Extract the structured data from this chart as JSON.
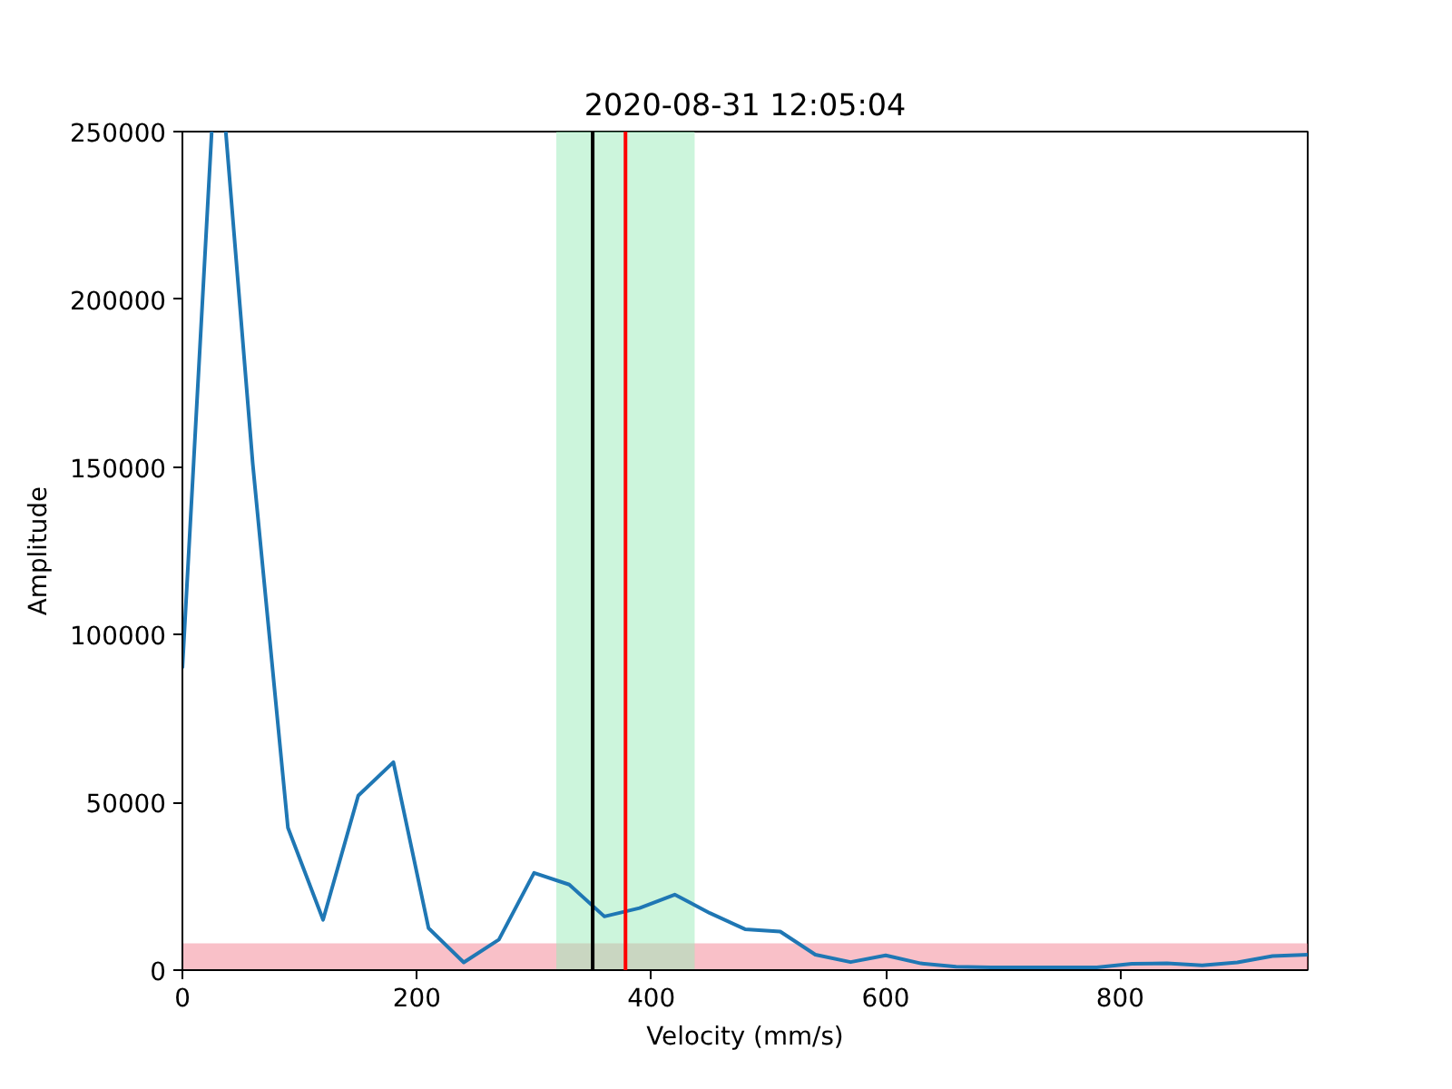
{
  "chart_data": {
    "type": "line",
    "title": "2020-08-31 12:05:04",
    "xlabel": "Velocity (mm/s)",
    "ylabel": "Amplitude",
    "series": [
      {
        "color": "#1f77b4",
        "x": [
          0,
          25,
          30,
          37,
          60,
          90,
          120,
          150,
          180,
          210,
          240,
          270,
          300,
          330,
          360,
          390,
          420,
          450,
          480,
          510,
          540,
          570,
          600,
          630,
          660,
          690,
          720,
          750,
          780,
          810,
          840,
          870,
          900,
          930,
          960
        ],
        "values": [
          90000,
          250000,
          null,
          250000,
          151000,
          42500,
          15000,
          52000,
          62000,
          12500,
          2300,
          9100,
          29000,
          25500,
          16000,
          18500,
          22500,
          17000,
          12200,
          11500,
          4600,
          2400,
          4400,
          2000,
          1000,
          800,
          800,
          800,
          800,
          1900,
          2000,
          1400,
          2300,
          4200,
          4600
        ]
      }
    ],
    "xlim": [
      0,
      960
    ],
    "ylim": [
      0,
      250000
    ],
    "xticks": [
      0,
      200,
      400,
      600,
      800
    ],
    "yticks": [
      0,
      50000,
      100000,
      150000,
      200000,
      250000
    ],
    "grid": false,
    "marker": "none",
    "line_style": "solid",
    "ref_lines": [
      {
        "axis": "x",
        "value": 350,
        "color": "#000000"
      },
      {
        "axis": "x",
        "value": 378,
        "color": "#ff0000"
      }
    ],
    "bands": [
      {
        "axis": "y",
        "from": 0,
        "to": 8000,
        "color": "#f9c0c8"
      },
      {
        "axis": "x",
        "from": 319,
        "to": 437,
        "color": "#ccf5dc"
      }
    ]
  }
}
